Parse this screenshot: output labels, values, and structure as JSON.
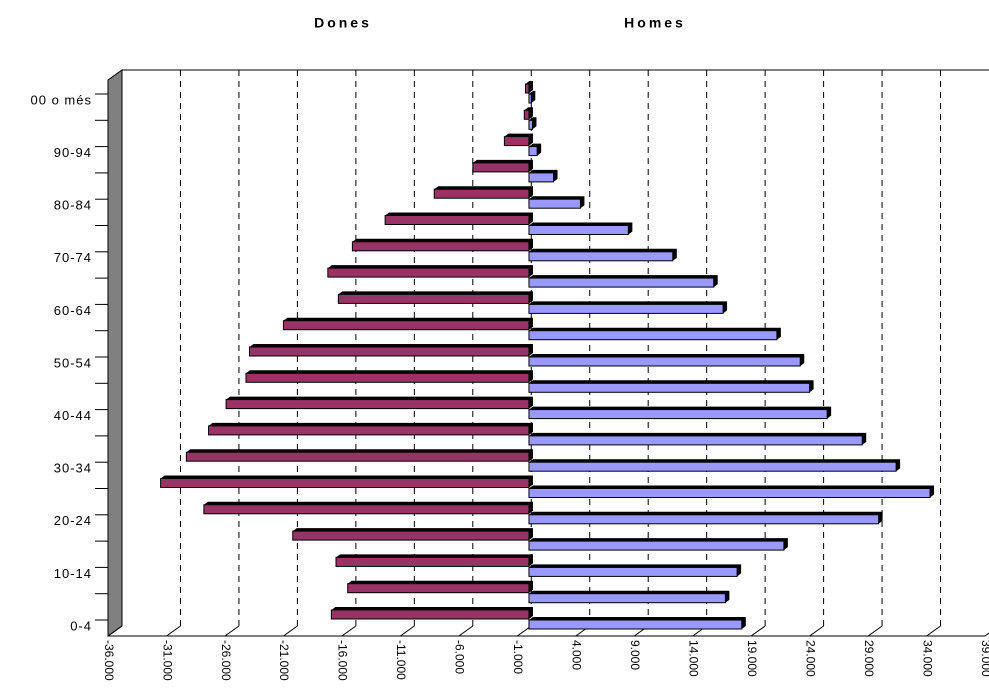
{
  "chart_data": {
    "type": "bar",
    "orientation": "horizontal",
    "categories": [
      "0-4",
      null,
      "10-14",
      null,
      "20-24",
      null,
      "30-34",
      null,
      "40-44",
      null,
      "50-54",
      null,
      "60-64",
      null,
      "70-74",
      null,
      "80-84",
      null,
      "90-94",
      null,
      "00 o més"
    ],
    "series": [
      {
        "name": "Dones",
        "color": "#993366",
        "values": [
          -16900,
          -15500,
          -16500,
          -20200,
          -27800,
          -31500,
          -29300,
          -27400,
          -25900,
          -24200,
          -23900,
          -21000,
          -16300,
          -17200,
          -15100,
          -12300,
          -8100,
          -4800,
          -2100,
          -400,
          -300
        ]
      },
      {
        "name": "Homes",
        "color": "#9999ff",
        "values": [
          18200,
          16800,
          17800,
          21800,
          29900,
          34300,
          31400,
          28500,
          25500,
          24000,
          23200,
          21200,
          16600,
          15800,
          12300,
          8500,
          4400,
          2100,
          700,
          300,
          200
        ]
      }
    ],
    "xlim": [
      -36000,
      39000
    ],
    "xticks": [
      {
        "value": -36000,
        "label": "-36.000"
      },
      {
        "value": -31000,
        "label": "-31.000"
      },
      {
        "value": -26000,
        "label": "-26.000"
      },
      {
        "value": -21000,
        "label": "-21.000"
      },
      {
        "value": -16000,
        "label": "-16.000"
      },
      {
        "value": -11000,
        "label": "-11.000"
      },
      {
        "value": -6000,
        "label": "-6.000"
      },
      {
        "value": -1000,
        "label": "-1.000"
      },
      {
        "value": 4000,
        "label": "4.000"
      },
      {
        "value": 9000,
        "label": "9.000"
      },
      {
        "value": 14000,
        "label": "14.000"
      },
      {
        "value": 19000,
        "label": "19.000"
      },
      {
        "value": 24000,
        "label": "24.000"
      },
      {
        "value": 29000,
        "label": "29.000"
      },
      {
        "value": 34000,
        "label": "34.000"
      },
      {
        "value": 39000,
        "label": "39.000"
      }
    ],
    "grid": true
  }
}
